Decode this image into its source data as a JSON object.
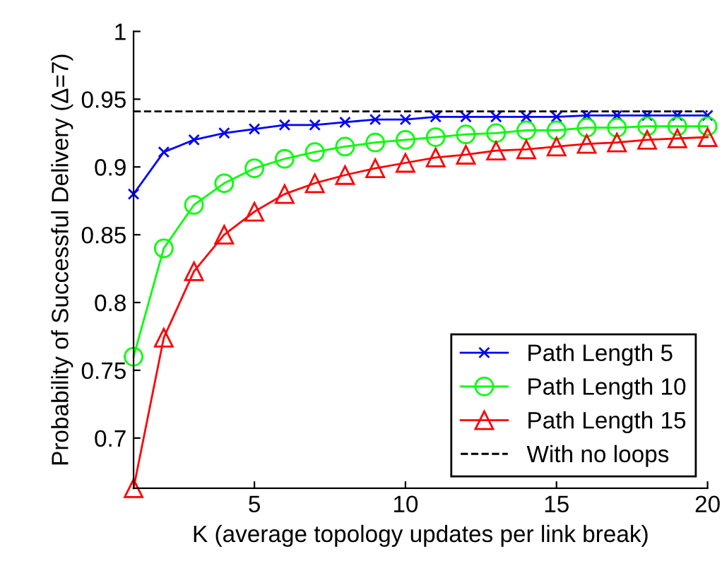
{
  "chart_data": {
    "type": "line",
    "xlabel": "K (average topology updates per link break)",
    "ylabel": "Probability of Successful Delivery (Δ=7)",
    "x": [
      1,
      2,
      3,
      4,
      5,
      6,
      7,
      8,
      9,
      10,
      11,
      12,
      13,
      14,
      15,
      16,
      17,
      18,
      19,
      20
    ],
    "series": [
      {
        "name": "Path Length 5",
        "color": "#0000ff",
        "marker": "cross",
        "values": [
          0.88,
          0.911,
          0.92,
          0.925,
          0.928,
          0.931,
          0.931,
          0.933,
          0.935,
          0.935,
          0.937,
          0.937,
          0.937,
          0.937,
          0.937,
          0.938,
          0.938,
          0.938,
          0.938,
          0.938
        ]
      },
      {
        "name": "Path Length 10",
        "color": "#00ff00",
        "marker": "circle",
        "values": [
          0.76,
          0.84,
          0.872,
          0.888,
          0.899,
          0.906,
          0.911,
          0.915,
          0.918,
          0.92,
          0.922,
          0.924,
          0.925,
          0.927,
          0.927,
          0.929,
          0.929,
          0.93,
          0.93,
          0.93
        ]
      },
      {
        "name": "Path Length 15",
        "color": "#ff0000",
        "marker": "triangle",
        "values": [
          0.663,
          0.774,
          0.823,
          0.85,
          0.867,
          0.88,
          0.888,
          0.894,
          0.899,
          0.903,
          0.907,
          0.909,
          0.912,
          0.913,
          0.915,
          0.917,
          0.918,
          0.92,
          0.921,
          0.922
        ]
      },
      {
        "name": "With no loops",
        "color": "#000000",
        "marker": "none",
        "line_style": "dashed",
        "values": [
          0.941,
          0.941,
          0.941,
          0.941,
          0.941,
          0.941,
          0.941,
          0.941,
          0.941,
          0.941,
          0.941,
          0.941,
          0.941,
          0.941,
          0.941,
          0.941,
          0.941,
          0.941,
          0.941,
          0.941
        ]
      }
    ],
    "xlim": [
      1,
      20
    ],
    "ylim": [
      0.663,
      1
    ],
    "xticks": [
      5,
      10,
      15,
      20
    ],
    "yticks": [
      0.7,
      0.75,
      0.8,
      0.85,
      0.9,
      0.95,
      1
    ],
    "grid": false,
    "legend": "bottom right"
  }
}
